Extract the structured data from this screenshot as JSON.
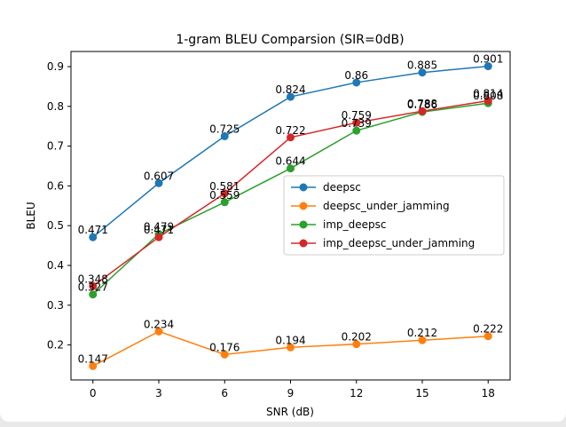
{
  "chart_data": {
    "type": "line",
    "title": "1-gram BLEU Comparsion (SIR=0dB)",
    "xlabel": "SNR (dB)",
    "ylabel": "BLEU",
    "x": [
      0,
      3,
      6,
      9,
      12,
      15,
      18
    ],
    "x_ticks": [
      "0",
      "3",
      "6",
      "9",
      "12",
      "15",
      "18"
    ],
    "y_ticks": [
      "0.2",
      "0.3",
      "0.4",
      "0.5",
      "0.6",
      "0.7",
      "0.8",
      "0.9"
    ],
    "xlim": [
      -1,
      19
    ],
    "ylim": [
      0.112,
      0.938
    ],
    "legend_position": "center-right",
    "series": [
      {
        "name": "deepsc",
        "color": "#1f77b4",
        "values": [
          0.471,
          0.607,
          0.725,
          0.824,
          0.86,
          0.885,
          0.901
        ],
        "labels": [
          "0.471",
          "0.607",
          "0.725",
          "0.824",
          "0.86",
          "0.885",
          "0.901"
        ]
      },
      {
        "name": "deepsc_under_jamming",
        "color": "#ff7f0e",
        "values": [
          0.147,
          0.234,
          0.176,
          0.194,
          0.202,
          0.212,
          0.222
        ],
        "labels": [
          "0.147",
          "0.234",
          "0.176",
          "0.194",
          "0.202",
          "0.212",
          "0.222"
        ]
      },
      {
        "name": "imp_deepsc",
        "color": "#2ca02c",
        "values": [
          0.327,
          0.479,
          0.559,
          0.644,
          0.739,
          0.786,
          0.808
        ],
        "labels": [
          "0.327",
          "0.479",
          "0.559",
          "0.644",
          "0.739",
          "0.786",
          "0.808"
        ]
      },
      {
        "name": "imp_deepsc_under_jamming",
        "color": "#d62728",
        "values": [
          0.348,
          0.471,
          0.581,
          0.722,
          0.759,
          0.788,
          0.814
        ],
        "labels": [
          "0.348",
          "0.471",
          "0.581",
          "0.722",
          "0.759",
          "0.788",
          "0.814"
        ]
      }
    ]
  }
}
